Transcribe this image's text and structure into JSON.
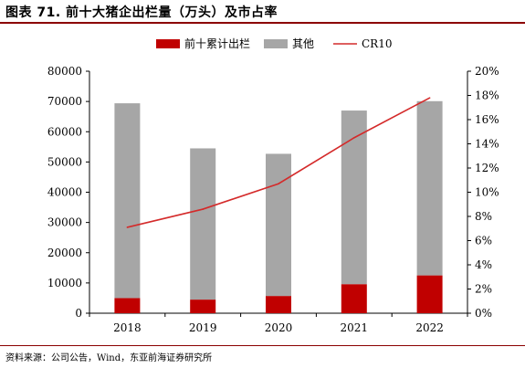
{
  "title": "图表 71. 前十大猪企出栏量（万头）及市占率",
  "source": "资料来源：公司公告，Wind，东亚前海证券研究所",
  "chart_data": {
    "type": "bar",
    "stacked": true,
    "categories": [
      "2018",
      "2019",
      "2020",
      "2021",
      "2022"
    ],
    "series": [
      {
        "name": "前十累计出栏",
        "kind": "bar",
        "axis": "left",
        "color": "#c00000",
        "values": [
          5000,
          4500,
          5700,
          9600,
          12500
        ]
      },
      {
        "name": "其他",
        "kind": "bar",
        "axis": "left",
        "color": "#a6a6a6",
        "values": [
          64400,
          50000,
          47000,
          57400,
          57600
        ]
      },
      {
        "name": "CR10",
        "kind": "line",
        "axis": "right",
        "color": "#d42a2a",
        "values": [
          7.1,
          8.6,
          10.7,
          14.5,
          17.8
        ]
      }
    ],
    "y_left": {
      "ylim": [
        0,
        80000
      ],
      "ticks": [
        "0",
        "10000",
        "20000",
        "30000",
        "40000",
        "50000",
        "60000",
        "70000",
        "80000"
      ]
    },
    "y_right": {
      "ylim": [
        0,
        20
      ],
      "ticks": [
        "0%",
        "2%",
        "4%",
        "6%",
        "8%",
        "10%",
        "12%",
        "14%",
        "16%",
        "18%",
        "20%"
      ]
    },
    "legend_position": "top"
  }
}
